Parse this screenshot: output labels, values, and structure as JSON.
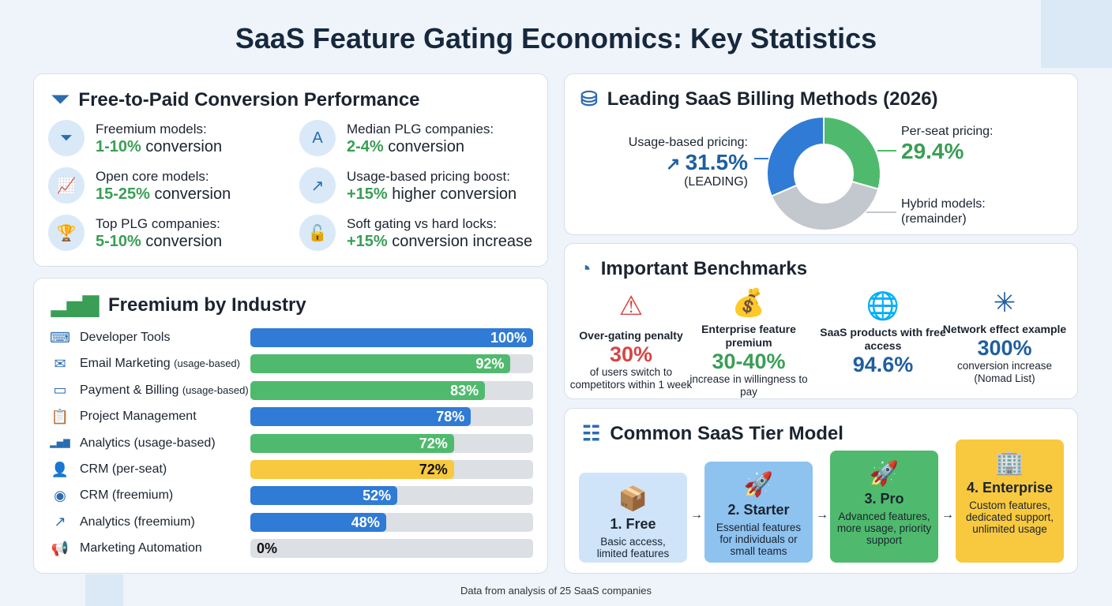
{
  "title": "SaaS Feature Gating Economics: Key Statistics",
  "conversion": {
    "title": "Free-to-Paid Conversion Performance",
    "items": [
      {
        "label": "Freemium models:",
        "value": "1-10%",
        "suffix": " conversion",
        "icon": "funnel-icon"
      },
      {
        "label": "Open core models:",
        "value": "15-25%",
        "suffix": " conversion",
        "icon": "line-chart-icon"
      },
      {
        "label": "Top PLG companies:",
        "value": "5-10%",
        "suffix": " conversion",
        "icon": "trophy-icon"
      },
      {
        "label": "Median PLG companies:",
        "value": "2-4%",
        "suffix": " conversion",
        "icon": "person-search-icon"
      },
      {
        "label": "Usage-based pricing boost:",
        "value": "+15%",
        "suffix": " higher conversion",
        "icon": "arrows-up-icon"
      },
      {
        "label": "Soft gating vs hard locks:",
        "value": "+15%",
        "suffix": " conversion increase",
        "icon": "unlock-icon"
      }
    ]
  },
  "industry": {
    "title": "Freemium by Industry"
  },
  "billing": {
    "title": "Leading SaaS Billing Methods (2026)",
    "usage_label": "Usage-based pricing:",
    "usage_value": "31.5%",
    "usage_note": "(LEADING)",
    "seat_label": "Per-seat pricing:",
    "seat_value": "29.4%",
    "hybrid_label": "Hybrid models:",
    "hybrid_note": "(remainder)"
  },
  "benchmarks": {
    "title": "Important Benchmarks",
    "items": [
      {
        "title": "Over-gating penalty",
        "value": "30%",
        "sub": "of users switch to competitors within 1 week",
        "color": "#d64545",
        "icon": "warning-user-icon"
      },
      {
        "title": "Enterprise feature premium",
        "value": "30-40%",
        "sub": "increase in willingness to pay",
        "color": "#3a9e55",
        "icon": "money-bag-icon"
      },
      {
        "title": "SaaS products with free access",
        "value": "94.6%",
        "sub": "",
        "color": "#1f5f9e",
        "icon": "globe-unlock-icon"
      },
      {
        "title": "Network effect example",
        "value": "300%",
        "sub": "conversion increase (Nomad List)",
        "color": "#1f5f9e",
        "icon": "network-icon"
      }
    ]
  },
  "tiers": {
    "title": "Common SaaS Tier Model",
    "items": [
      {
        "name": "1. Free",
        "desc": "Basic access, limited features",
        "color": "#cfe4f8",
        "icon": "box-icon"
      },
      {
        "name": "2. Starter",
        "desc": "Essential features for individuals or small teams",
        "color": "#8ec2ef",
        "icon": "rocket-icon"
      },
      {
        "name": "3. Pro",
        "desc": "Advanced features, more usage, priority support",
        "color": "#4fba6d",
        "icon": "rocket-icon"
      },
      {
        "name": "4. Enterprise",
        "desc": "Custom features, dedicated support, unlimited usage",
        "color": "#f8c93e",
        "icon": "building-icon"
      }
    ]
  },
  "footer": "Data from analysis of 25 SaaS companies",
  "chart_data": [
    {
      "type": "bar",
      "orientation": "horizontal",
      "title": "Freemium by Industry",
      "xlim": [
        0,
        100
      ],
      "categories": [
        "Developer Tools",
        "Email Marketing (usage-based)",
        "Payment & Billing (usage-based)",
        "Project Management",
        "Analytics (usage-based)",
        "CRM (per-seat)",
        "CRM (freemium)",
        "Analytics (freemium)",
        "Marketing Automation"
      ],
      "cat_main": [
        "Developer Tools",
        "Email Marketing ",
        "Payment & Billing ",
        "Project Management",
        "Analytics (usage-based)",
        "CRM (per-seat)",
        "CRM (freemium)",
        "Analytics (freemium)",
        "Marketing Automation"
      ],
      "cat_small": [
        "",
        "(usage-based)",
        "(usage-based)",
        "",
        "",
        "",
        "",
        "",
        ""
      ],
      "values": [
        100,
        92,
        83,
        78,
        72,
        72,
        52,
        48,
        0
      ],
      "labels": [
        "100%",
        "92%",
        "83%",
        "78%",
        "72%",
        "72%",
        "52%",
        "48%",
        "0%"
      ],
      "colors": [
        "#2f7bd6",
        "#4fba6d",
        "#4fba6d",
        "#2f7bd6",
        "#4fba6d",
        "#f8c93e",
        "#2f7bd6",
        "#2f7bd6",
        "#2f7bd6"
      ],
      "icons": [
        "code-window-icon",
        "envelope-icon",
        "credit-card-icon",
        "clipboard-icon",
        "bar-chart-icon",
        "user-icon",
        "user-circle-icon",
        "trend-chart-icon",
        "megaphone-icon"
      ]
    },
    {
      "type": "pie",
      "donut": true,
      "title": "Leading SaaS Billing Methods (2026)",
      "slices": [
        {
          "name": "Per-seat pricing",
          "value": 29.4,
          "color": "#4fba6d"
        },
        {
          "name": "Hybrid models",
          "value": 39.1,
          "color": "#c3c8ce"
        },
        {
          "name": "Usage-based pricing",
          "value": 31.5,
          "color": "#2f7bd6"
        }
      ]
    }
  ]
}
